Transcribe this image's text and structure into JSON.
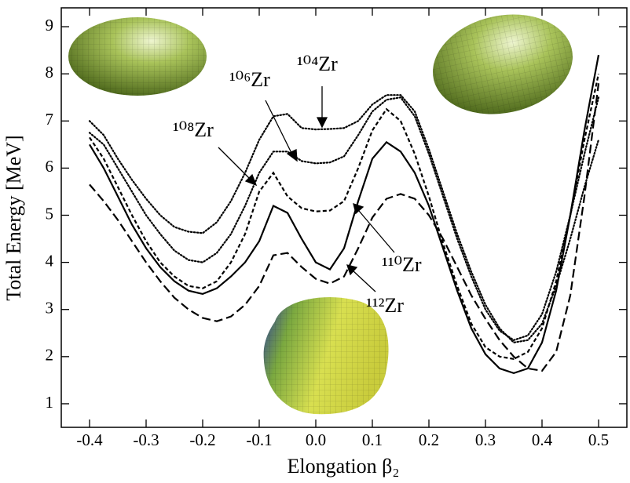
{
  "chart_data": {
    "type": "line",
    "xlabel": "Elongation β₂",
    "ylabel": "Total Energy [MeV]",
    "x": [
      -0.4,
      -0.375,
      -0.35,
      -0.325,
      -0.3,
      -0.275,
      -0.25,
      -0.225,
      -0.2,
      -0.175,
      -0.15,
      -0.125,
      -0.1,
      -0.075,
      -0.05,
      -0.025,
      0,
      0.025,
      0.05,
      0.075,
      0.1,
      0.125,
      0.15,
      0.175,
      0.2,
      0.225,
      0.25,
      0.275,
      0.3,
      0.325,
      0.35,
      0.375,
      0.4,
      0.425,
      0.45,
      0.475,
      0.5
    ],
    "xlim": [
      -0.45,
      0.55
    ],
    "ylim": [
      0.5,
      9.4
    ],
    "xticks": [
      -0.4,
      -0.3,
      -0.2,
      -0.1,
      {
        "value": 0,
        "label": "0.0"
      },
      0.1,
      0.2,
      0.3,
      0.4,
      0.5
    ],
    "yticks": [
      1,
      2,
      3,
      4,
      5,
      6,
      7,
      8,
      9
    ],
    "series": [
      {
        "name": "¹⁰⁴Zr",
        "color": "#000000",
        "line_style": "dotted",
        "values": [
          7.0,
          6.7,
          6.2,
          5.75,
          5.35,
          5.0,
          4.75,
          4.65,
          4.62,
          4.85,
          5.3,
          5.9,
          6.6,
          7.1,
          7.15,
          6.85,
          6.82,
          6.83,
          6.85,
          7.0,
          7.35,
          7.55,
          7.55,
          7.2,
          6.4,
          5.5,
          4.6,
          3.8,
          3.1,
          2.6,
          2.3,
          2.35,
          2.7,
          3.5,
          4.5,
          5.6,
          6.6
        ]
      },
      {
        "name": "¹⁰⁶Zr",
        "color": "#000000",
        "line_style": "dotted",
        "values": [
          6.75,
          6.5,
          6.0,
          5.5,
          5.0,
          4.6,
          4.25,
          4.05,
          4.0,
          4.2,
          4.6,
          5.2,
          5.9,
          6.35,
          6.35,
          6.15,
          6.1,
          6.12,
          6.25,
          6.7,
          7.2,
          7.45,
          7.5,
          7.1,
          6.3,
          5.4,
          4.5,
          3.7,
          3.0,
          2.55,
          2.35,
          2.45,
          2.9,
          3.8,
          5.0,
          6.3,
          7.5
        ]
      },
      {
        "name": "¹⁰⁸Zr",
        "color": "#000000",
        "line_style": "short-dash",
        "values": [
          6.65,
          6.2,
          5.6,
          5.0,
          4.45,
          4.0,
          3.7,
          3.5,
          3.45,
          3.6,
          4.0,
          4.6,
          5.5,
          5.9,
          5.4,
          5.15,
          5.08,
          5.1,
          5.3,
          6.0,
          6.8,
          7.25,
          7.0,
          6.3,
          5.4,
          4.4,
          3.5,
          2.7,
          2.2,
          2.0,
          1.95,
          2.1,
          2.6,
          3.6,
          5.0,
          6.6,
          8.0
        ]
      },
      {
        "name": "¹¹⁰Zr",
        "color": "#000000",
        "line_style": "solid",
        "values": [
          6.5,
          6.0,
          5.4,
          4.8,
          4.3,
          3.9,
          3.6,
          3.4,
          3.33,
          3.45,
          3.7,
          4.0,
          4.45,
          5.2,
          5.05,
          4.5,
          4.0,
          3.85,
          4.3,
          5.3,
          6.2,
          6.55,
          6.35,
          5.9,
          5.2,
          4.3,
          3.4,
          2.6,
          2.05,
          1.75,
          1.65,
          1.75,
          2.3,
          3.4,
          5.0,
          6.8,
          8.4
        ]
      },
      {
        "name": "¹¹²Zr",
        "color": "#000000",
        "line_style": "long-dash",
        "values": [
          5.65,
          5.3,
          4.9,
          4.45,
          4.0,
          3.6,
          3.25,
          3.0,
          2.82,
          2.75,
          2.85,
          3.1,
          3.5,
          4.15,
          4.2,
          3.9,
          3.65,
          3.55,
          3.7,
          4.3,
          4.95,
          5.35,
          5.45,
          5.35,
          5.0,
          4.5,
          3.9,
          3.3,
          2.8,
          2.35,
          2.0,
          1.75,
          1.7,
          2.1,
          3.3,
          5.4,
          7.8
        ]
      }
    ]
  }
}
